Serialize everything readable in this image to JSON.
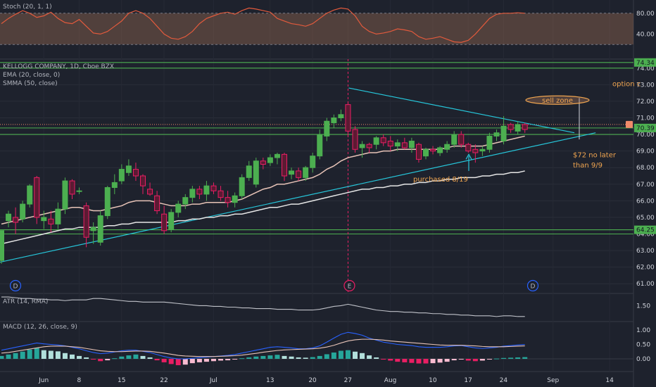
{
  "legends": {
    "stoch": "Stoch (20, 1, 1)",
    "symbol": "KELLOGG COMPANY, 1D, Cboe BZX",
    "ema": "EMA (20, close, 0)",
    "smma": "SMMA (50, close)",
    "atr": "ATR (14, RMA)",
    "macd": "MACD (12, 26, close, 9)"
  },
  "price_axis_labels": [
    "74.00",
    "73.00",
    "72.00",
    "71.00",
    "70.00",
    "69.00",
    "68.00",
    "67.00",
    "66.00",
    "65.00",
    "64.00",
    "63.00",
    "62.00",
    "61.00"
  ],
  "stoch_axis_labels": [
    "80.00",
    "40.00"
  ],
  "atr_axis_labels": [
    "1.50"
  ],
  "macd_axis_labels": [
    "1.00",
    "0.50",
    "0.00"
  ],
  "date_labels": [
    "Jun",
    "8",
    "15",
    "22",
    "Jul",
    "13",
    "20",
    "27",
    "Aug",
    "10",
    "17",
    "24",
    "Sep",
    "14"
  ],
  "price_tags": {
    "top": "74.34",
    "current": "70.39",
    "bottom": "64.25"
  },
  "annotations": {
    "option": "option c",
    "sell_zone": "sell zone",
    "target_line1": "$72 no later",
    "target_line2": "than 9/9",
    "purchased": "purchased 8/19"
  },
  "events": {
    "dividend1": "D",
    "earnings": "E",
    "dividend2": "D"
  },
  "colors": {
    "background": "#1e222d",
    "up": "#26a69a",
    "green_candle": "#4caf50",
    "down": "#ef5350",
    "trendline": "#26c6da",
    "support_line": "#4caf50",
    "ema": "#e8c4b8",
    "smma": "#e6e6e6",
    "annotation": "#f0a550",
    "stoch_fill": "#b2785a"
  },
  "chart_data": [
    {
      "type": "candlestick",
      "symbol": "KELLOGG COMPANY, 1D, Cboe BZX",
      "ylim": [
        60.5,
        74.5
      ],
      "y_tick_labels": [
        "74.00",
        "73.00",
        "72.00",
        "71.00",
        "70.00",
        "69.00",
        "68.00",
        "67.00",
        "66.00",
        "65.00",
        "64.00",
        "63.00",
        "62.00",
        "61.00"
      ],
      "x_labels": [
        "Jun",
        "8",
        "15",
        "22",
        "Jul",
        "13",
        "20",
        "27",
        "Aug",
        "10",
        "17",
        "24",
        "Sep",
        "14"
      ],
      "candles": [
        {
          "o": 62.4,
          "h": 64.2,
          "l": 62.2,
          "c": 64.2
        },
        {
          "o": 64.8,
          "h": 65.4,
          "l": 64.4,
          "c": 65.2
        },
        {
          "o": 65.0,
          "h": 65.6,
          "l": 64.0,
          "c": 64.7
        },
        {
          "o": 64.9,
          "h": 66.0,
          "l": 64.7,
          "c": 65.8
        },
        {
          "o": 65.8,
          "h": 67.0,
          "l": 65.6,
          "c": 66.9
        },
        {
          "o": 67.4,
          "h": 67.5,
          "l": 64.6,
          "c": 65.0
        },
        {
          "o": 64.8,
          "h": 65.4,
          "l": 64.3,
          "c": 65.0
        },
        {
          "o": 64.9,
          "h": 65.4,
          "l": 64.1,
          "c": 64.6
        },
        {
          "o": 64.6,
          "h": 65.9,
          "l": 64.3,
          "c": 65.5
        },
        {
          "o": 65.5,
          "h": 67.4,
          "l": 65.2,
          "c": 67.2
        },
        {
          "o": 67.2,
          "h": 67.3,
          "l": 66.1,
          "c": 66.4
        },
        {
          "o": 66.6,
          "h": 66.8,
          "l": 66.4,
          "c": 66.6
        },
        {
          "o": 65.7,
          "h": 65.9,
          "l": 63.2,
          "c": 63.8
        },
        {
          "o": 64.2,
          "h": 64.7,
          "l": 63.4,
          "c": 64.4
        },
        {
          "o": 63.5,
          "h": 65.4,
          "l": 63.3,
          "c": 65.1
        },
        {
          "o": 65.1,
          "h": 66.9,
          "l": 64.9,
          "c": 66.8
        },
        {
          "o": 66.8,
          "h": 67.6,
          "l": 66.4,
          "c": 67.1
        },
        {
          "o": 67.2,
          "h": 68.2,
          "l": 67.0,
          "c": 67.9
        },
        {
          "o": 67.7,
          "h": 68.5,
          "l": 67.5,
          "c": 68.1
        },
        {
          "o": 67.9,
          "h": 68.3,
          "l": 67.2,
          "c": 67.5
        },
        {
          "o": 67.5,
          "h": 67.6,
          "l": 66.4,
          "c": 66.9
        },
        {
          "o": 66.7,
          "h": 67.1,
          "l": 66.3,
          "c": 66.4
        },
        {
          "o": 66.3,
          "h": 66.6,
          "l": 65.2,
          "c": 65.4
        },
        {
          "o": 65.2,
          "h": 65.7,
          "l": 64.0,
          "c": 64.2
        },
        {
          "o": 64.3,
          "h": 65.5,
          "l": 64.1,
          "c": 65.3
        },
        {
          "o": 65.3,
          "h": 66.0,
          "l": 65.0,
          "c": 65.8
        },
        {
          "o": 65.8,
          "h": 66.4,
          "l": 65.5,
          "c": 66.2
        },
        {
          "o": 66.2,
          "h": 66.9,
          "l": 65.9,
          "c": 66.7
        },
        {
          "o": 66.7,
          "h": 66.9,
          "l": 66.1,
          "c": 66.4
        },
        {
          "o": 66.4,
          "h": 67.2,
          "l": 66.0,
          "c": 66.9
        },
        {
          "o": 66.9,
          "h": 67.1,
          "l": 66.4,
          "c": 66.6
        },
        {
          "o": 66.6,
          "h": 66.9,
          "l": 66.0,
          "c": 66.2
        },
        {
          "o": 66.2,
          "h": 66.6,
          "l": 65.6,
          "c": 65.9
        },
        {
          "o": 65.9,
          "h": 66.5,
          "l": 65.6,
          "c": 66.3
        },
        {
          "o": 66.3,
          "h": 67.6,
          "l": 66.1,
          "c": 67.4
        },
        {
          "o": 67.4,
          "h": 68.4,
          "l": 67.2,
          "c": 68.1
        },
        {
          "o": 67.0,
          "h": 68.6,
          "l": 66.8,
          "c": 68.4
        },
        {
          "o": 68.4,
          "h": 68.6,
          "l": 67.9,
          "c": 68.2
        },
        {
          "o": 68.3,
          "h": 68.8,
          "l": 68.1,
          "c": 68.6
        },
        {
          "o": 68.6,
          "h": 68.9,
          "l": 68.2,
          "c": 68.8
        },
        {
          "o": 68.8,
          "h": 68.9,
          "l": 67.2,
          "c": 67.5
        },
        {
          "o": 67.6,
          "h": 68.0,
          "l": 67.3,
          "c": 67.8
        },
        {
          "o": 67.8,
          "h": 68.0,
          "l": 67.2,
          "c": 67.4
        },
        {
          "o": 67.4,
          "h": 68.1,
          "l": 67.2,
          "c": 68.0
        },
        {
          "o": 68.0,
          "h": 68.9,
          "l": 67.7,
          "c": 68.7
        },
        {
          "o": 68.7,
          "h": 70.3,
          "l": 68.5,
          "c": 70.0
        },
        {
          "o": 69.9,
          "h": 71.0,
          "l": 69.6,
          "c": 70.8
        },
        {
          "o": 70.7,
          "h": 71.2,
          "l": 70.4,
          "c": 71.0
        },
        {
          "o": 71.0,
          "h": 71.5,
          "l": 70.8,
          "c": 71.2
        },
        {
          "o": 71.8,
          "h": 71.9,
          "l": 69.9,
          "c": 70.2
        },
        {
          "o": 70.3,
          "h": 70.5,
          "l": 68.9,
          "c": 69.1
        },
        {
          "o": 69.2,
          "h": 69.6,
          "l": 68.6,
          "c": 69.4
        },
        {
          "o": 69.4,
          "h": 69.5,
          "l": 68.9,
          "c": 69.2
        },
        {
          "o": 69.4,
          "h": 69.9,
          "l": 69.1,
          "c": 69.8
        },
        {
          "o": 69.8,
          "h": 70.0,
          "l": 69.3,
          "c": 69.5
        },
        {
          "o": 69.6,
          "h": 69.9,
          "l": 69.0,
          "c": 69.3
        },
        {
          "o": 69.3,
          "h": 69.7,
          "l": 69.0,
          "c": 69.5
        },
        {
          "o": 69.5,
          "h": 69.8,
          "l": 69.1,
          "c": 69.2
        },
        {
          "o": 69.2,
          "h": 69.8,
          "l": 68.9,
          "c": 69.6
        },
        {
          "o": 69.4,
          "h": 69.5,
          "l": 68.3,
          "c": 68.5
        },
        {
          "o": 68.7,
          "h": 69.2,
          "l": 68.5,
          "c": 69.1
        },
        {
          "o": 69.1,
          "h": 69.3,
          "l": 68.8,
          "c": 69.0
        },
        {
          "o": 68.9,
          "h": 69.3,
          "l": 68.7,
          "c": 69.2
        },
        {
          "o": 69.1,
          "h": 69.6,
          "l": 68.9,
          "c": 69.4
        },
        {
          "o": 69.4,
          "h": 70.2,
          "l": 69.2,
          "c": 70.0
        },
        {
          "o": 70.0,
          "h": 70.2,
          "l": 69.2,
          "c": 69.4
        },
        {
          "o": 69.4,
          "h": 69.5,
          "l": 68.9,
          "c": 69.0
        },
        {
          "o": 69.1,
          "h": 69.4,
          "l": 68.3,
          "c": 68.9
        },
        {
          "o": 69.0,
          "h": 69.3,
          "l": 68.7,
          "c": 69.1
        },
        {
          "o": 69.1,
          "h": 70.1,
          "l": 68.9,
          "c": 69.9
        },
        {
          "o": 69.9,
          "h": 70.3,
          "l": 69.6,
          "c": 70.1
        },
        {
          "o": 69.6,
          "h": 71.1,
          "l": 69.4,
          "c": 70.5
        },
        {
          "o": 70.6,
          "h": 70.7,
          "l": 70.1,
          "c": 70.3
        },
        {
          "o": 70.2,
          "h": 70.8,
          "l": 70.0,
          "c": 70.6
        },
        {
          "o": 70.6,
          "h": 70.7,
          "l": 70.1,
          "c": 70.3
        }
      ],
      "ema_20": [
        64.6,
        64.7,
        64.8,
        64.9,
        65.0,
        65.1,
        65.2,
        65.3,
        65.4,
        65.5,
        65.6,
        65.6,
        65.5,
        65.4,
        65.4,
        65.5,
        65.6,
        65.7,
        65.9,
        66.0,
        66.0,
        66.0,
        65.9,
        65.8,
        65.7,
        65.7,
        65.7,
        65.8,
        65.8,
        65.9,
        65.9,
        65.9,
        65.9,
        66.0,
        66.1,
        66.3,
        66.5,
        66.7,
        66.8,
        67.0,
        67.0,
        67.1,
        67.2,
        67.3,
        67.4,
        67.6,
        67.9,
        68.1,
        68.4,
        68.6,
        68.7,
        68.8,
        68.9,
        68.9,
        69.0,
        69.0,
        69.1,
        69.1,
        69.1,
        69.1,
        69.1,
        69.1,
        69.1,
        69.2,
        69.3,
        69.3,
        69.3,
        69.3,
        69.3,
        69.4,
        69.5,
        69.6,
        69.7,
        69.8,
        69.9
      ],
      "smma_50": [
        63.4,
        63.5,
        63.6,
        63.7,
        63.8,
        63.9,
        64.0,
        64.1,
        64.2,
        64.3,
        64.3,
        64.4,
        64.4,
        64.4,
        64.4,
        64.5,
        64.5,
        64.6,
        64.6,
        64.7,
        64.7,
        64.7,
        64.7,
        64.7,
        64.7,
        64.8,
        64.8,
        64.9,
        64.9,
        65.0,
        65.0,
        65.1,
        65.1,
        65.2,
        65.2,
        65.3,
        65.4,
        65.5,
        65.6,
        65.6,
        65.7,
        65.8,
        65.8,
        65.9,
        66.0,
        66.1,
        66.2,
        66.3,
        66.4,
        66.5,
        66.6,
        66.7,
        66.7,
        66.8,
        66.8,
        66.9,
        66.9,
        67.0,
        67.0,
        67.1,
        67.1,
        67.2,
        67.2,
        67.3,
        67.3,
        67.4,
        67.4,
        67.4,
        67.5,
        67.5,
        67.6,
        67.6,
        67.7,
        67.7,
        67.8
      ],
      "horizontal_levels": [
        74.34,
        74.0,
        70.39,
        70.0,
        64.25,
        64.0
      ],
      "dotted_level": 70.6,
      "pattern": "symmetrical triangle (descending resistance, ascending support)"
    },
    {
      "type": "line",
      "title": "Stoch (20, 1, 1)",
      "ylim": [
        0,
        100
      ],
      "band": [
        20,
        80
      ],
      "y_tick_labels": [
        "80.00",
        "40.00"
      ],
      "values": [
        60,
        70,
        78,
        85,
        80,
        72,
        75,
        82,
        70,
        62,
        60,
        68,
        55,
        42,
        40,
        45,
        55,
        65,
        80,
        85,
        80,
        70,
        55,
        40,
        32,
        30,
        35,
        45,
        60,
        70,
        75,
        80,
        82,
        78,
        85,
        90,
        88,
        85,
        82,
        70,
        65,
        60,
        58,
        55,
        60,
        70,
        80,
        86,
        90,
        88,
        75,
        55,
        45,
        40,
        42,
        45,
        50,
        48,
        45,
        35,
        30,
        32,
        35,
        30,
        25,
        24,
        28,
        40,
        55,
        70,
        78,
        80,
        80,
        81,
        80
      ]
    },
    {
      "type": "line",
      "title": "ATR (14, RMA)",
      "y_tick_labels": [
        "1.50"
      ],
      "values": [
        1.62,
        1.62,
        1.61,
        1.6,
        1.6,
        1.59,
        1.59,
        1.58,
        1.58,
        1.57,
        1.58,
        1.58,
        1.58,
        1.6,
        1.6,
        1.59,
        1.58,
        1.57,
        1.56,
        1.56,
        1.55,
        1.55,
        1.55,
        1.55,
        1.54,
        1.53,
        1.52,
        1.51,
        1.5,
        1.5,
        1.49,
        1.49,
        1.48,
        1.48,
        1.47,
        1.47,
        1.46,
        1.46,
        1.46,
        1.45,
        1.45,
        1.45,
        1.44,
        1.44,
        1.44,
        1.45,
        1.47,
        1.49,
        1.5,
        1.52,
        1.5,
        1.48,
        1.46,
        1.44,
        1.43,
        1.42,
        1.42,
        1.41,
        1.41,
        1.4,
        1.4,
        1.39,
        1.39,
        1.38,
        1.38,
        1.37,
        1.37,
        1.36,
        1.36,
        1.36,
        1.35,
        1.36,
        1.36,
        1.35,
        1.35
      ]
    },
    {
      "type": "bar",
      "title": "MACD (12, 26, close, 9)",
      "y_tick_labels": [
        "1.00",
        "0.50",
        "0.00"
      ],
      "histogram": [
        0.1,
        0.15,
        0.2,
        0.25,
        0.32,
        0.38,
        0.3,
        0.28,
        0.26,
        0.2,
        0.15,
        0.1,
        0.05,
        -0.02,
        -0.08,
        -0.05,
        0.02,
        0.08,
        0.12,
        0.15,
        0.1,
        0.05,
        -0.05,
        -0.12,
        -0.18,
        -0.22,
        -0.2,
        -0.15,
        -0.12,
        -0.1,
        -0.08,
        -0.06,
        -0.05,
        -0.02,
        0.02,
        0.05,
        0.08,
        0.1,
        0.12,
        0.14,
        0.1,
        0.08,
        0.05,
        0.04,
        0.06,
        0.1,
        0.16,
        0.22,
        0.28,
        0.3,
        0.25,
        0.2,
        0.12,
        0.05,
        -0.02,
        -0.06,
        -0.1,
        -0.12,
        -0.14,
        -0.16,
        -0.16,
        -0.15,
        -0.13,
        -0.1,
        -0.05,
        -0.02,
        -0.06,
        -0.08,
        -0.06,
        -0.02,
        0.01,
        0.03,
        0.04,
        0.05,
        0.06
      ],
      "macd_line": [
        0.3,
        0.35,
        0.4,
        0.45,
        0.5,
        0.55,
        0.52,
        0.5,
        0.48,
        0.45,
        0.4,
        0.35,
        0.28,
        0.22,
        0.18,
        0.2,
        0.24,
        0.28,
        0.3,
        0.3,
        0.26,
        0.22,
        0.15,
        0.08,
        0.03,
        0.0,
        0.0,
        0.02,
        0.04,
        0.06,
        0.08,
        0.1,
        0.12,
        0.15,
        0.2,
        0.25,
        0.3,
        0.35,
        0.4,
        0.42,
        0.4,
        0.38,
        0.35,
        0.35,
        0.38,
        0.45,
        0.58,
        0.72,
        0.85,
        0.92,
        0.88,
        0.82,
        0.72,
        0.65,
        0.58,
        0.54,
        0.5,
        0.48,
        0.46,
        0.42,
        0.4,
        0.4,
        0.4,
        0.42,
        0.45,
        0.46,
        0.42,
        0.38,
        0.36,
        0.38,
        0.4,
        0.44,
        0.46,
        0.48,
        0.5
      ],
      "signal_line": [
        0.2,
        0.22,
        0.26,
        0.3,
        0.34,
        0.38,
        0.42,
        0.44,
        0.44,
        0.44,
        0.42,
        0.4,
        0.36,
        0.32,
        0.28,
        0.26,
        0.25,
        0.25,
        0.26,
        0.27,
        0.27,
        0.26,
        0.23,
        0.2,
        0.16,
        0.12,
        0.1,
        0.09,
        0.08,
        0.08,
        0.08,
        0.09,
        0.1,
        0.11,
        0.13,
        0.16,
        0.19,
        0.23,
        0.26,
        0.29,
        0.31,
        0.32,
        0.33,
        0.34,
        0.35,
        0.37,
        0.41,
        0.47,
        0.55,
        0.62,
        0.66,
        0.68,
        0.68,
        0.67,
        0.65,
        0.62,
        0.6,
        0.58,
        0.56,
        0.54,
        0.52,
        0.5,
        0.48,
        0.47,
        0.47,
        0.47,
        0.46,
        0.45,
        0.43,
        0.42,
        0.42,
        0.42,
        0.43,
        0.44,
        0.45
      ]
    }
  ]
}
